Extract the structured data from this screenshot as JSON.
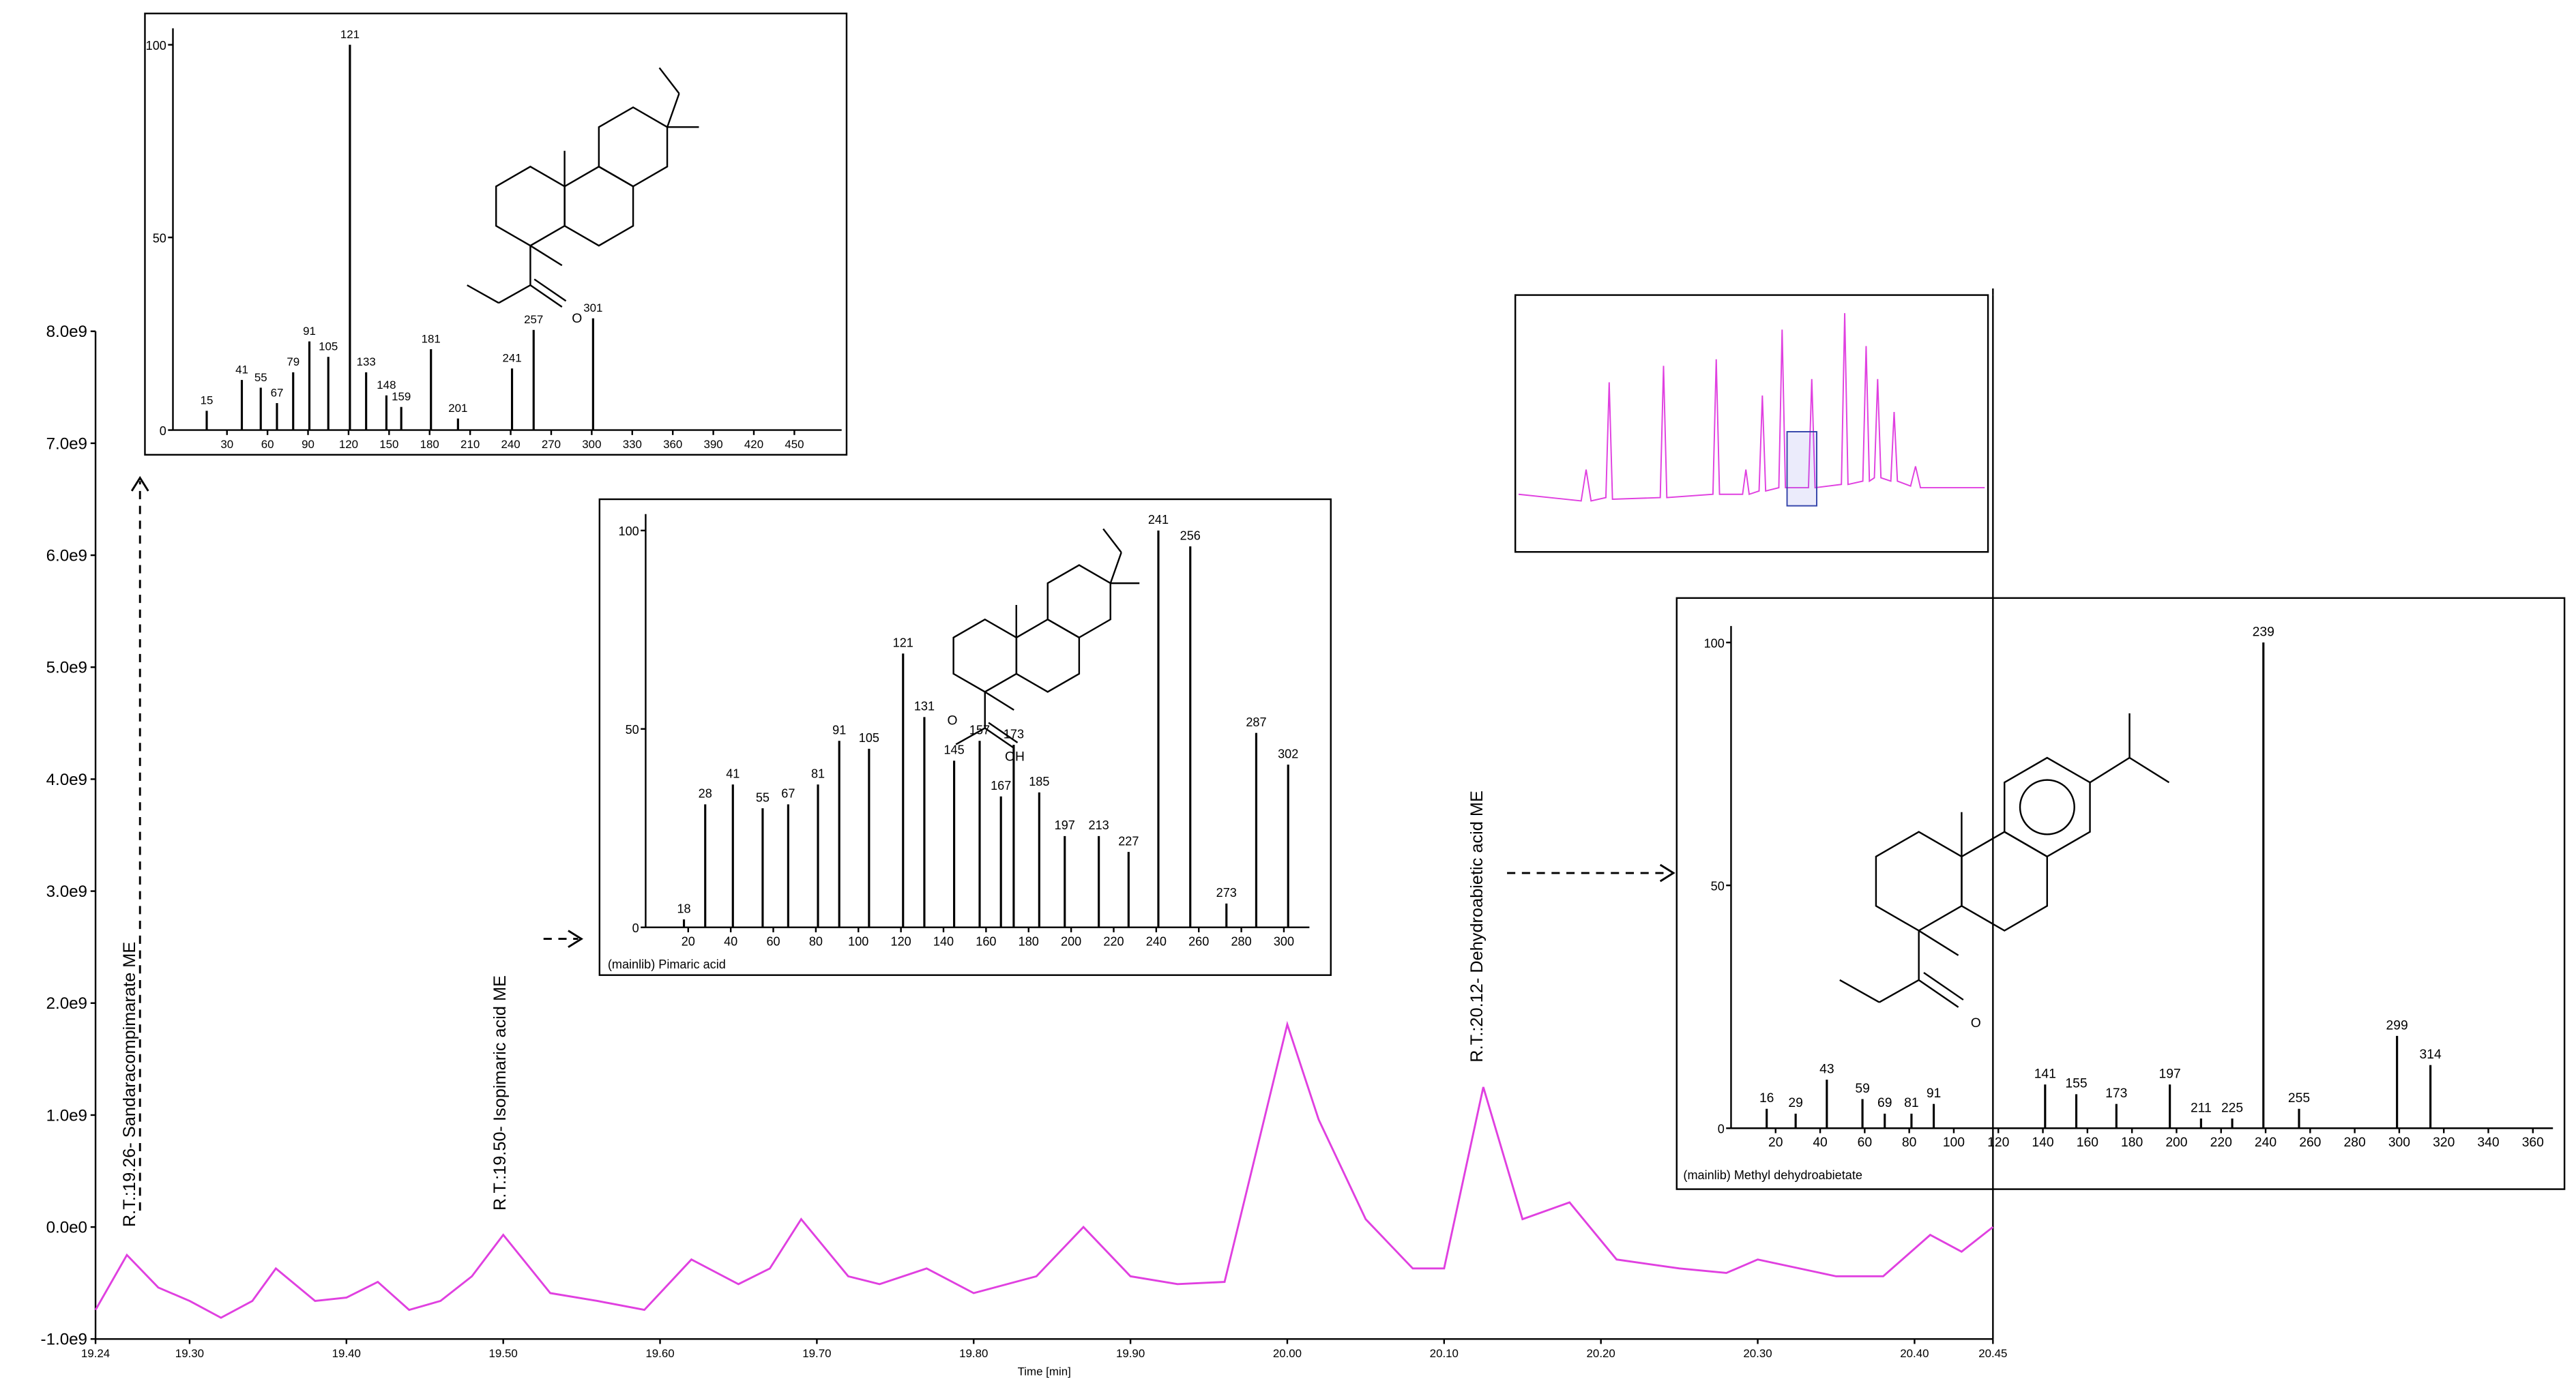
{
  "chart_data": [
    {
      "type": "line",
      "x_label": "Time [min]",
      "color": "#e040e0",
      "annotations": [
        "R.T.:19.26- Sandaracompimarate ME",
        "R.T.:19.50- Isopimaric acid ME",
        "R.T.:20.12- Dehydroabietic acid ME"
      ],
      "x": [
        19.24,
        19.26,
        19.28,
        19.3,
        19.32,
        19.34,
        19.355,
        19.38,
        19.4,
        19.42,
        19.44,
        19.46,
        19.48,
        19.5,
        19.53,
        19.56,
        19.59,
        19.62,
        19.65,
        19.67,
        19.69,
        19.72,
        19.74,
        19.77,
        19.8,
        19.84,
        19.87,
        19.9,
        19.93,
        19.96,
        19.98,
        20.0,
        20.02,
        20.05,
        20.08,
        20.1,
        20.125,
        20.15,
        20.18,
        20.21,
        20.25,
        20.28,
        20.3,
        20.35,
        20.38,
        20.41,
        20.43,
        20.45
      ],
      "values": [
        -740000000,
        -250000000,
        -540000000,
        -660000000,
        -810000000,
        -660000000,
        -370000000,
        -660000000,
        -630000000,
        -490000000,
        -740000000,
        -660000000,
        -440000000,
        -70000000,
        -590000000,
        -660000000,
        -740000000,
        -290000000,
        -510000000,
        -370000000,
        70000000,
        -440000000,
        -510000000,
        -370000000,
        -590000000,
        -440000000,
        0,
        -440000000,
        -510000000,
        -490000000,
        660000000,
        1810000000,
        960000000,
        70000000,
        -370000000,
        -370000000,
        1250000000,
        70000000,
        220000000,
        -290000000,
        -370000000,
        -410000000,
        -290000000,
        -440000000,
        -440000000,
        -70000000,
        -220000000,
        0
      ],
      "xlim": [
        19.24,
        20.45
      ],
      "xticks": [
        {
          "value": 19.24,
          "label": "19.24"
        },
        {
          "value": 19.3,
          "label": "19.30"
        },
        {
          "value": 19.4,
          "label": "19.40"
        },
        {
          "value": 19.5,
          "label": "19.50"
        },
        {
          "value": 19.6,
          "label": "19.60"
        },
        {
          "value": 19.7,
          "label": "19.70"
        },
        {
          "value": 19.8,
          "label": "19.80"
        },
        {
          "value": 19.9,
          "label": "19.90"
        },
        {
          "value": 20.0,
          "label": "20.00"
        },
        {
          "value": 20.1,
          "label": "20.10"
        },
        {
          "value": 20.2,
          "label": "20.20"
        },
        {
          "value": 20.3,
          "label": "20.30"
        },
        {
          "value": 20.4,
          "label": "20.40"
        },
        {
          "value": 20.45,
          "label": "20.45"
        }
      ],
      "ylim": [
        -1000000000,
        8000000000
      ],
      "yticks": [
        {
          "value": -1000000000,
          "label": "-1.0e9"
        },
        {
          "value": 0,
          "label": "0.0e0"
        },
        {
          "value": 1000000000,
          "label": "1.0e9"
        },
        {
          "value": 2000000000,
          "label": "2.0e9"
        },
        {
          "value": 3000000000,
          "label": "3.0e9"
        },
        {
          "value": 4000000000,
          "label": "4.0e9"
        },
        {
          "value": 5000000000,
          "label": "5.0e9"
        },
        {
          "value": 6000000000,
          "label": "6.0e9"
        },
        {
          "value": 7000000000,
          "label": "7.0e9"
        },
        {
          "value": 8000000000,
          "label": "8.0e9"
        }
      ]
    },
    {
      "type": "spectrum",
      "color": "#000000",
      "atom_labels": [
        "O"
      ],
      "x": [
        15,
        41,
        55,
        67,
        79,
        91,
        105,
        121,
        133,
        148,
        159,
        181,
        201,
        241,
        257,
        301
      ],
      "values": [
        5,
        13,
        11,
        7,
        15,
        23,
        19,
        100,
        15,
        9,
        6,
        21,
        3,
        16,
        26,
        29
      ],
      "xlim": [
        -10,
        485
      ],
      "xticks": [
        30,
        60,
        90,
        120,
        150,
        180,
        210,
        240,
        270,
        300,
        330,
        360,
        390,
        420,
        450
      ],
      "ylim": [
        0,
        100
      ],
      "yticks": [
        0,
        50,
        100
      ]
    },
    {
      "type": "spectrum",
      "color": "#000000",
      "caption": "(mainlib) Pimaric acid",
      "atom_labels": [
        "O",
        "OH"
      ],
      "x": [
        18,
        28,
        41,
        55,
        67,
        81,
        91,
        105,
        121,
        131,
        145,
        157,
        167,
        173,
        185,
        197,
        213,
        227,
        241,
        256,
        273,
        287,
        302
      ],
      "values": [
        2,
        31,
        36,
        30,
        31,
        36,
        47,
        45,
        69,
        53,
        42,
        47,
        33,
        46,
        34,
        23,
        23,
        19,
        100,
        96,
        6,
        49,
        41
      ],
      "xlim": [
        0,
        312
      ],
      "xticks": [
        20,
        40,
        60,
        80,
        100,
        120,
        140,
        160,
        180,
        200,
        220,
        240,
        260,
        280,
        300
      ],
      "ylim": [
        0,
        100
      ],
      "yticks": [
        0,
        50,
        100
      ]
    },
    {
      "type": "spectrum",
      "color": "#000000",
      "caption": "(mainlib) Methyl dehydroabietate",
      "atom_labels": [
        "O"
      ],
      "x": [
        16,
        29,
        43,
        59,
        69,
        81,
        91,
        141,
        155,
        173,
        197,
        211,
        225,
        239,
        255,
        299,
        314
      ],
      "values": [
        4,
        3,
        10,
        6,
        3,
        3,
        5,
        9,
        7,
        5,
        9,
        2,
        2,
        100,
        4,
        19,
        13
      ],
      "xlim": [
        0,
        369
      ],
      "xticks": [
        20,
        40,
        60,
        80,
        100,
        120,
        140,
        160,
        180,
        200,
        220,
        240,
        260,
        280,
        300,
        320,
        340,
        360
      ],
      "ylim": [
        0,
        100
      ],
      "yticks": [
        0,
        50,
        100
      ]
    }
  ]
}
